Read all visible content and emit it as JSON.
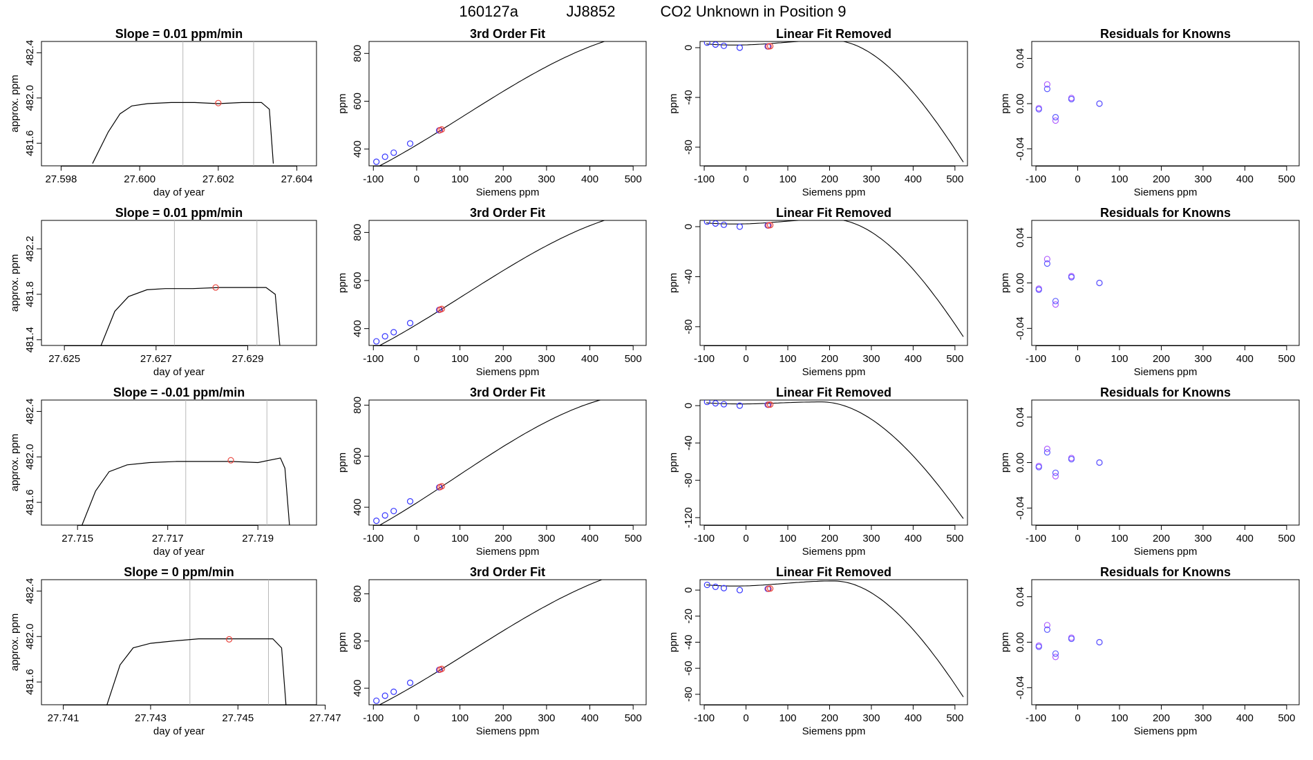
{
  "header": {
    "run_id": "160127a",
    "tank_id": "JJ8852",
    "description": "CO2 Unknown in Position  9"
  },
  "chart_data": [
    {
      "type": "line",
      "title": "Slope =  0.01  ppm/min",
      "xlabel": "day of year",
      "ylabel": "approx. ppm",
      "xlim": [
        27.5975,
        27.6045
      ],
      "ylim": [
        481.4,
        482.5
      ],
      "xticks": [
        "27.598",
        "27.600",
        "27.602",
        "27.604"
      ],
      "yticks": [
        "481.6",
        "482.0",
        "482.4"
      ],
      "vlines": [
        27.6011,
        27.6029
      ],
      "series": [
        {
          "x": [
            27.5988,
            27.5992,
            27.5995,
            27.5998,
            27.6002,
            27.6008,
            27.6014,
            27.602,
            27.6026,
            27.6031,
            27.6033,
            27.6034
          ],
          "y": [
            481.42,
            481.7,
            481.86,
            481.93,
            481.95,
            481.96,
            481.96,
            481.95,
            481.96,
            481.96,
            481.9,
            481.42
          ]
        }
      ],
      "marker": {
        "x": 27.602,
        "y": 481.955,
        "color": "#e8433c"
      },
      "grid": false
    },
    {
      "type": "line",
      "title": "3rd Order Fit",
      "xlabel": "Siemens ppm",
      "ylabel": "ppm",
      "xlim": [
        -110,
        530
      ],
      "ylim": [
        330,
        850
      ],
      "xticks": [
        "-100",
        "0",
        "100",
        "200",
        "300",
        "400",
        "500"
      ],
      "yticks": [
        "400",
        "600",
        "800"
      ],
      "fit": {
        "c0": 417,
        "c1": 1.08,
        "c2": 0.00055,
        "c3": -1.7e-06,
        "x_from": -95,
        "x_to": 520
      },
      "points_blue": {
        "x": [
          -93,
          -73,
          -53,
          -15,
          52
        ],
        "y": [
          347,
          368,
          385,
          423,
          478
        ]
      },
      "points_red": {
        "x": [
          54,
          58
        ],
        "y": [
          479,
          482
        ]
      },
      "grid": false
    },
    {
      "type": "line",
      "title": "Linear Fit Removed",
      "xlabel": "Siemens ppm",
      "ylabel": "",
      "xlim": [
        -110,
        530
      ],
      "ylim": [
        -95,
        5
      ],
      "xticks": [
        "-100",
        "0",
        "100",
        "200",
        "300",
        "400",
        "500"
      ],
      "yticks": [
        "0",
        "-40",
        "-80"
      ],
      "curve": {
        "x_from": -95,
        "x_to": 520,
        "x_peak": 205,
        "y_peak": 6,
        "y_end": -92,
        "y_start": 3
      },
      "points_blue": {
        "x": [
          -93,
          -73,
          -53,
          -15,
          52
        ],
        "y": [
          4,
          2.5,
          1.5,
          0,
          1
        ]
      },
      "points_red": {
        "x": [
          54,
          58
        ],
        "y": [
          1,
          1.2
        ]
      },
      "grid": false
    },
    {
      "type": "scatter",
      "title": "Residuals for Knowns",
      "xlabel": "Siemens ppm",
      "ylabel": "ppm",
      "xlim": [
        -110,
        530
      ],
      "ylim": [
        -0.055,
        0.055
      ],
      "xticks": [
        "-100",
        "0",
        "100",
        "200",
        "300",
        "400",
        "500"
      ],
      "yticks": [
        "-0.04",
        "0.00",
        "0.04"
      ],
      "series": [
        {
          "color": "#b05cff",
          "x": [
            -93,
            -73,
            -53,
            -15,
            52
          ],
          "y": [
            -0.004,
            0.017,
            -0.015,
            0.005,
            0.0
          ]
        },
        {
          "color": "#5b5bff",
          "x": [
            -93,
            -73,
            -53,
            -15,
            52
          ],
          "y": [
            -0.005,
            0.013,
            -0.012,
            0.004,
            0.0
          ]
        }
      ],
      "grid": false
    },
    {
      "type": "line",
      "title": "Slope =  0.01  ppm/min",
      "xlabel": "day of year",
      "ylabel": "approx. ppm",
      "xlim": [
        27.6245,
        27.6305
      ],
      "ylim": [
        481.35,
        482.45
      ],
      "xticks": [
        "27.625",
        "27.627",
        "27.629"
      ],
      "yticks": [
        "481.4",
        "481.8",
        "482.2"
      ],
      "vlines": [
        27.6274,
        27.6292
      ],
      "series": [
        {
          "x": [
            27.6258,
            27.6261,
            27.6264,
            27.6268,
            27.6272,
            27.6278,
            27.6284,
            27.629,
            27.6294,
            27.6296,
            27.6297
          ],
          "y": [
            481.35,
            481.65,
            481.78,
            481.84,
            481.85,
            481.85,
            481.86,
            481.86,
            481.86,
            481.8,
            481.35
          ]
        }
      ],
      "marker": {
        "x": 27.6283,
        "y": 481.86,
        "color": "#e8433c"
      },
      "grid": false
    },
    {
      "type": "line",
      "title": "3rd Order Fit",
      "xlabel": "Siemens ppm",
      "ylabel": "ppm",
      "xlim": [
        -110,
        530
      ],
      "ylim": [
        330,
        850
      ],
      "xticks": [
        "-100",
        "0",
        "100",
        "200",
        "300",
        "400",
        "500"
      ],
      "yticks": [
        "400",
        "600",
        "800"
      ],
      "fit": {
        "c0": 417,
        "c1": 1.08,
        "c2": 0.00055,
        "c3": -1.7e-06,
        "x_from": -95,
        "x_to": 520
      },
      "points_blue": {
        "x": [
          -93,
          -73,
          -53,
          -15,
          52
        ],
        "y": [
          347,
          368,
          385,
          423,
          478
        ]
      },
      "points_red": {
        "x": [
          54,
          58
        ],
        "y": [
          479,
          482
        ]
      },
      "grid": false
    },
    {
      "type": "line",
      "title": "Linear Fit Removed",
      "xlabel": "Siemens ppm",
      "ylabel": "",
      "xlim": [
        -110,
        530
      ],
      "ylim": [
        -95,
        5
      ],
      "xticks": [
        "-100",
        "0",
        "100",
        "200",
        "300",
        "400",
        "500"
      ],
      "yticks": [
        "0",
        "-40",
        "-80"
      ],
      "curve": {
        "x_from": -95,
        "x_to": 520,
        "x_peak": 205,
        "y_peak": 6,
        "y_end": -88,
        "y_start": 3
      },
      "points_blue": {
        "x": [
          -93,
          -73,
          -53,
          -15,
          52
        ],
        "y": [
          4,
          2.5,
          1.5,
          0,
          1
        ]
      },
      "points_red": {
        "x": [
          54,
          58
        ],
        "y": [
          1,
          1.2
        ]
      },
      "grid": false
    },
    {
      "type": "scatter",
      "title": "Residuals for Knowns",
      "xlabel": "Siemens ppm",
      "ylabel": "ppm",
      "xlim": [
        -110,
        530
      ],
      "ylim": [
        -0.055,
        0.055
      ],
      "xticks": [
        "-100",
        "0",
        "100",
        "200",
        "300",
        "400",
        "500"
      ],
      "yticks": [
        "-0.04",
        "0.00",
        "0.04"
      ],
      "series": [
        {
          "color": "#b05cff",
          "x": [
            -93,
            -73,
            -53,
            -15,
            52
          ],
          "y": [
            -0.005,
            0.021,
            -0.019,
            0.006,
            0.0
          ]
        },
        {
          "color": "#5b5bff",
          "x": [
            -93,
            -73,
            -53,
            -15,
            52
          ],
          "y": [
            -0.006,
            0.017,
            -0.016,
            0.005,
            0.0
          ]
        }
      ],
      "grid": false
    },
    {
      "type": "line",
      "title": "Slope =  -0.01  ppm/min",
      "xlabel": "day of year",
      "ylabel": "approx. ppm",
      "xlim": [
        27.7142,
        27.7203
      ],
      "ylim": [
        481.4,
        482.5
      ],
      "xticks": [
        "27.715",
        "27.717",
        "27.719"
      ],
      "yticks": [
        "481.6",
        "482.0",
        "482.4"
      ],
      "vlines": [
        27.7174,
        27.7192
      ],
      "series": [
        {
          "x": [
            27.7151,
            27.7154,
            27.7157,
            27.7161,
            27.7166,
            27.7172,
            27.7178,
            27.7184,
            27.719,
            27.7195,
            27.7196,
            27.7197
          ],
          "y": [
            481.4,
            481.7,
            481.87,
            481.93,
            481.95,
            481.96,
            481.96,
            481.96,
            481.95,
            481.99,
            481.9,
            481.4
          ]
        }
      ],
      "marker": {
        "x": 27.7184,
        "y": 481.97,
        "color": "#e8433c"
      },
      "grid": false
    },
    {
      "type": "line",
      "title": "3rd Order Fit",
      "xlabel": "Siemens ppm",
      "ylabel": "ppm",
      "xlim": [
        -110,
        530
      ],
      "ylim": [
        330,
        820
      ],
      "xticks": [
        "-100",
        "0",
        "100",
        "200",
        "300",
        "400",
        "500"
      ],
      "yticks": [
        "400",
        "600",
        "800"
      ],
      "fit": {
        "c0": 417,
        "c1": 1.08,
        "c2": 0.0005,
        "c3": -1.9e-06,
        "x_from": -95,
        "x_to": 520
      },
      "points_blue": {
        "x": [
          -93,
          -73,
          -53,
          -15,
          52
        ],
        "y": [
          347,
          368,
          385,
          423,
          478
        ]
      },
      "points_red": {
        "x": [
          54,
          58
        ],
        "y": [
          479,
          482
        ]
      },
      "grid": false
    },
    {
      "type": "line",
      "title": "Linear Fit Removed",
      "xlabel": "Siemens ppm",
      "ylabel": "",
      "xlim": [
        -110,
        530
      ],
      "ylim": [
        -128,
        6
      ],
      "xticks": [
        "-100",
        "0",
        "100",
        "200",
        "300",
        "400",
        "500"
      ],
      "yticks": [
        "0",
        "-40",
        "-80",
        "-120"
      ],
      "curve": {
        "x_from": -95,
        "x_to": 520,
        "x_peak": 180,
        "y_peak": 4,
        "y_end": -121,
        "y_start": 3
      },
      "points_blue": {
        "x": [
          -93,
          -73,
          -53,
          -15,
          52
        ],
        "y": [
          4,
          2.5,
          1.5,
          0,
          1
        ]
      },
      "points_red": {
        "x": [
          54,
          58
        ],
        "y": [
          1,
          1.2
        ]
      },
      "grid": false
    },
    {
      "type": "scatter",
      "title": "Residuals for Knowns",
      "xlabel": "Siemens ppm",
      "ylabel": "ppm",
      "xlim": [
        -110,
        530
      ],
      "ylim": [
        -0.055,
        0.055
      ],
      "xticks": [
        "-100",
        "0",
        "100",
        "200",
        "300",
        "400",
        "500"
      ],
      "yticks": [
        "-0.04",
        "0.00",
        "0.04"
      ],
      "series": [
        {
          "color": "#b05cff",
          "x": [
            -93,
            -73,
            -53,
            -15,
            52
          ],
          "y": [
            -0.003,
            0.012,
            -0.012,
            0.004,
            0.0
          ]
        },
        {
          "color": "#5b5bff",
          "x": [
            -93,
            -73,
            -53,
            -15,
            52
          ],
          "y": [
            -0.004,
            0.009,
            -0.009,
            0.003,
            0.0
          ]
        }
      ],
      "grid": false
    },
    {
      "type": "line",
      "title": "Slope =  0  ppm/min",
      "xlabel": "day of year",
      "ylabel": "approx. ppm",
      "xlim": [
        27.7405,
        27.7468
      ],
      "ylim": [
        481.4,
        482.5
      ],
      "xticks": [
        "27.741",
        "27.743",
        "27.745",
        "27.747"
      ],
      "yticks": [
        "481.6",
        "482.0",
        "482.4"
      ],
      "vlines": [
        27.7439,
        27.7457
      ],
      "series": [
        {
          "x": [
            27.742,
            27.7423,
            27.7426,
            27.743,
            27.7435,
            27.7441,
            27.7447,
            27.7453,
            27.7458,
            27.746,
            27.7461
          ],
          "y": [
            481.4,
            481.75,
            481.9,
            481.94,
            481.96,
            481.98,
            481.98,
            481.98,
            481.98,
            481.9,
            481.4
          ]
        }
      ],
      "marker": {
        "x": 27.7448,
        "y": 481.975,
        "color": "#e8433c"
      },
      "grid": false
    },
    {
      "type": "line",
      "title": "3rd Order Fit",
      "xlabel": "Siemens ppm",
      "ylabel": "ppm",
      "xlim": [
        -110,
        530
      ],
      "ylim": [
        330,
        860
      ],
      "xticks": [
        "-100",
        "0",
        "100",
        "200",
        "300",
        "400",
        "500"
      ],
      "yticks": [
        "400",
        "600",
        "800"
      ],
      "fit": {
        "c0": 417,
        "c1": 1.08,
        "c2": 0.00058,
        "c3": -1.6e-06,
        "x_from": -95,
        "x_to": 520
      },
      "points_blue": {
        "x": [
          -93,
          -73,
          -53,
          -15,
          52
        ],
        "y": [
          347,
          368,
          385,
          423,
          478
        ]
      },
      "points_red": {
        "x": [
          54,
          58
        ],
        "y": [
          479,
          482
        ]
      },
      "grid": false
    },
    {
      "type": "line",
      "title": "Linear Fit Removed",
      "xlabel": "Siemens ppm",
      "ylabel": "",
      "xlim": [
        -110,
        530
      ],
      "ylim": [
        -88,
        8
      ],
      "xticks": [
        "-100",
        "0",
        "100",
        "200",
        "300",
        "400",
        "500"
      ],
      "yticks": [
        "0",
        "-20",
        "-40",
        "-60",
        "-80"
      ],
      "curve": {
        "x_from": -95,
        "x_to": 520,
        "x_peak": 210,
        "y_peak": 7,
        "y_end": -82,
        "y_start": 4
      },
      "points_blue": {
        "x": [
          -93,
          -73,
          -53,
          -15,
          52
        ],
        "y": [
          4,
          2.5,
          1.5,
          0,
          1
        ]
      },
      "points_red": {
        "x": [
          54,
          58
        ],
        "y": [
          1,
          1.2
        ]
      },
      "grid": false
    },
    {
      "type": "scatter",
      "title": "Residuals for Knowns",
      "xlabel": "Siemens ppm",
      "ylabel": "ppm",
      "xlim": [
        -110,
        530
      ],
      "ylim": [
        -0.055,
        0.055
      ],
      "xticks": [
        "-100",
        "0",
        "100",
        "200",
        "300",
        "400",
        "500"
      ],
      "yticks": [
        "-0.04",
        "0.00",
        "0.04"
      ],
      "series": [
        {
          "color": "#b05cff",
          "x": [
            -93,
            -73,
            -53,
            -15,
            52
          ],
          "y": [
            -0.003,
            0.015,
            -0.013,
            0.004,
            0.0
          ]
        },
        {
          "color": "#5b5bff",
          "x": [
            -93,
            -73,
            -53,
            -15,
            52
          ],
          "y": [
            -0.004,
            0.011,
            -0.01,
            0.003,
            0.0
          ]
        }
      ],
      "grid": false
    }
  ]
}
